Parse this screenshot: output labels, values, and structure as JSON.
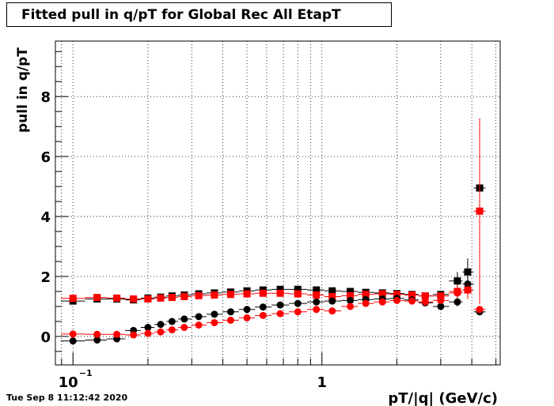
{
  "title": "Fitted pull in q/pT for Global Rec All EtapT",
  "timestamp": "Tue Sep  8 11:12:42 2020",
  "chart_data": {
    "type": "scatter",
    "title": "Fitted pull in q/pT for Global Rec All EtapT",
    "xlabel": "pT/|q| (GeV/c)",
    "ylabel": "pull in q/pT",
    "xscale": "log",
    "xlim": [
      0.085,
      5.2
    ],
    "ylim": [
      -0.95,
      9.85
    ],
    "xticks": [
      {
        "v": 0.1,
        "label": "10",
        "sup": "−1"
      },
      {
        "v": 1,
        "label": "1",
        "sup": ""
      }
    ],
    "yticks": [
      0,
      2,
      4,
      6,
      8
    ],
    "grid": true,
    "colors": {
      "black": "#000000",
      "red": "#ff0000"
    },
    "series": [
      {
        "marker": "square",
        "color": "#000000",
        "x": [
          0.1,
          0.125,
          0.15,
          0.175,
          0.2,
          0.225,
          0.25,
          0.28,
          0.32,
          0.37,
          0.43,
          0.5,
          0.58,
          0.68,
          0.8,
          0.95,
          1.1,
          1.3,
          1.5,
          1.75,
          2.0,
          2.3,
          2.6,
          3.0,
          3.5,
          3.85,
          4.3
        ],
        "y": [
          1.18,
          1.25,
          1.25,
          1.22,
          1.28,
          1.31,
          1.35,
          1.38,
          1.42,
          1.45,
          1.48,
          1.52,
          1.55,
          1.57,
          1.57,
          1.55,
          1.52,
          1.5,
          1.47,
          1.45,
          1.43,
          1.4,
          1.35,
          1.4,
          1.85,
          2.15,
          4.95
        ],
        "err": [
          0.02,
          0.02,
          0.02,
          0.02,
          0.02,
          0.02,
          0.02,
          0.02,
          0.02,
          0.02,
          0.02,
          0.02,
          0.02,
          0.02,
          0.02,
          0.02,
          0.02,
          0.03,
          0.03,
          0.03,
          0.04,
          0.05,
          0.08,
          0.12,
          0.3,
          0.45,
          0.0
        ]
      },
      {
        "marker": "square",
        "color": "#ff0000",
        "x": [
          0.1,
          0.125,
          0.15,
          0.175,
          0.2,
          0.225,
          0.25,
          0.28,
          0.32,
          0.37,
          0.43,
          0.5,
          0.58,
          0.68,
          0.8,
          0.95,
          1.1,
          1.3,
          1.5,
          1.75,
          2.0,
          2.3,
          2.6,
          3.0,
          3.5,
          3.85,
          4.3
        ],
        "y": [
          1.27,
          1.3,
          1.28,
          1.25,
          1.25,
          1.28,
          1.3,
          1.33,
          1.36,
          1.38,
          1.4,
          1.42,
          1.44,
          1.44,
          1.42,
          1.38,
          1.33,
          1.36,
          1.4,
          1.42,
          1.4,
          1.38,
          1.35,
          1.35,
          1.5,
          1.55,
          4.18
        ],
        "err": [
          0.02,
          0.02,
          0.02,
          0.02,
          0.02,
          0.02,
          0.02,
          0.02,
          0.02,
          0.02,
          0.02,
          0.02,
          0.02,
          0.02,
          0.02,
          0.02,
          0.02,
          0.03,
          0.03,
          0.03,
          0.04,
          0.05,
          0.08,
          0.1,
          0.2,
          0.3,
          3.1
        ]
      },
      {
        "marker": "circle",
        "color": "#000000",
        "x": [
          0.1,
          0.125,
          0.15,
          0.175,
          0.2,
          0.225,
          0.25,
          0.28,
          0.32,
          0.37,
          0.43,
          0.5,
          0.58,
          0.68,
          0.8,
          0.95,
          1.1,
          1.3,
          1.5,
          1.75,
          2.0,
          2.3,
          2.6,
          3.0,
          3.5,
          3.85,
          4.3
        ],
        "y": [
          -0.15,
          -0.12,
          -0.08,
          0.2,
          0.3,
          0.4,
          0.5,
          0.58,
          0.66,
          0.74,
          0.82,
          0.9,
          0.98,
          1.05,
          1.1,
          1.15,
          1.18,
          1.2,
          1.23,
          1.25,
          1.27,
          1.22,
          1.12,
          1.0,
          1.15,
          1.75,
          0.82
        ],
        "err": [
          0.02,
          0.02,
          0.02,
          0.02,
          0.02,
          0.02,
          0.02,
          0.02,
          0.02,
          0.02,
          0.02,
          0.02,
          0.02,
          0.02,
          0.02,
          0.02,
          0.02,
          0.03,
          0.03,
          0.03,
          0.04,
          0.05,
          0.06,
          0.08,
          0.15,
          0.25,
          0.1
        ]
      },
      {
        "marker": "circle",
        "color": "#ff0000",
        "x": [
          0.1,
          0.125,
          0.15,
          0.175,
          0.2,
          0.225,
          0.25,
          0.28,
          0.32,
          0.37,
          0.43,
          0.5,
          0.58,
          0.68,
          0.8,
          0.95,
          1.1,
          1.3,
          1.5,
          1.75,
          2.0,
          2.3,
          2.6,
          3.0,
          3.5,
          3.85,
          4.3
        ],
        "y": [
          0.08,
          0.07,
          0.07,
          0.05,
          0.1,
          0.15,
          0.22,
          0.3,
          0.38,
          0.46,
          0.54,
          0.62,
          0.7,
          0.76,
          0.82,
          0.9,
          0.85,
          1.0,
          1.1,
          1.15,
          1.2,
          1.18,
          1.15,
          1.2,
          1.45,
          1.55,
          0.9
        ],
        "err": [
          0.02,
          0.02,
          0.02,
          0.02,
          0.02,
          0.02,
          0.02,
          0.02,
          0.02,
          0.02,
          0.02,
          0.02,
          0.02,
          0.02,
          0.02,
          0.02,
          0.02,
          0.03,
          0.03,
          0.03,
          0.04,
          0.05,
          0.06,
          0.08,
          0.15,
          0.2,
          0.08
        ]
      }
    ]
  }
}
